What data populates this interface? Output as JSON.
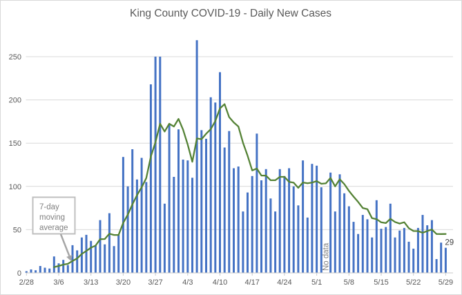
{
  "chart": {
    "title": "King County COVID-19 - Daily New Cases",
    "annotation": {
      "lines": [
        "7-day",
        "moving",
        "average"
      ]
    },
    "no_data_label": "No data",
    "last_value_label": "29",
    "colors": {
      "bar": "#4472C4",
      "line": "#548235",
      "grid": "#D9D9D9",
      "baseline": "#C9C9C9",
      "axis_text": "#595959",
      "title_text": "#595959",
      "annotation_text": "#808080",
      "annotation_border": "#BFBFBF",
      "arrow": "#A6A6A6",
      "data_label": "#404040",
      "chart_border": "#D9D9D9",
      "background": "#FFFFFF"
    }
  },
  "chart_data": {
    "type": "bar",
    "title": "King County COVID-19 - Daily New Cases",
    "xlabel": "",
    "ylabel": "",
    "x": [
      "2/28",
      "2/29",
      "3/1",
      "3/2",
      "3/3",
      "3/4",
      "3/5",
      "3/6",
      "3/7",
      "3/8",
      "3/9",
      "3/10",
      "3/11",
      "3/12",
      "3/13",
      "3/14",
      "3/15",
      "3/16",
      "3/17",
      "3/18",
      "3/19",
      "3/20",
      "3/21",
      "3/22",
      "3/23",
      "3/24",
      "3/25",
      "3/26",
      "3/27",
      "3/28",
      "3/29",
      "3/30",
      "3/31",
      "4/1",
      "4/2",
      "4/3",
      "4/4",
      "4/5",
      "4/6",
      "4/7",
      "4/8",
      "4/9",
      "4/10",
      "4/11",
      "4/12",
      "4/13",
      "4/14",
      "4/15",
      "4/16",
      "4/17",
      "4/18",
      "4/19",
      "4/20",
      "4/21",
      "4/22",
      "4/23",
      "4/24",
      "4/25",
      "4/26",
      "4/27",
      "4/28",
      "4/29",
      "4/30",
      "5/1",
      "5/2",
      "5/3",
      "5/4",
      "5/5",
      "5/6",
      "5/7",
      "5/8",
      "5/9",
      "5/10",
      "5/11",
      "5/12",
      "5/13",
      "5/14",
      "5/15",
      "5/16",
      "5/17",
      "5/18",
      "5/19",
      "5/20",
      "5/21",
      "5/22",
      "5/23",
      "5/24",
      "5/25",
      "5/26",
      "5/27",
      "5/28",
      "5/29"
    ],
    "series": [
      {
        "name": "Daily new cases",
        "type": "bar",
        "color": "#4472C4",
        "values": [
          2,
          4,
          3,
          8,
          6,
          5,
          19,
          11,
          15,
          9,
          32,
          26,
          41,
          44,
          37,
          32,
          61,
          33,
          69,
          31,
          44,
          134,
          100,
          143,
          108,
          133,
          105,
          218,
          250,
          250,
          80,
          171,
          111,
          166,
          131,
          130,
          110,
          269,
          165,
          155,
          203,
          197,
          232,
          145,
          164,
          121,
          123,
          71,
          93,
          112,
          161,
          107,
          120,
          86,
          71,
          120,
          112,
          121,
          100,
          78,
          130,
          64,
          126,
          124,
          99,
          null,
          116,
          71,
          114,
          92,
          77,
          59,
          45,
          67,
          62,
          41,
          84,
          51,
          53,
          80,
          41,
          49,
          52,
          36,
          28,
          52,
          67,
          55,
          61,
          16,
          35,
          29
        ]
      },
      {
        "name": "7-day moving average",
        "type": "line",
        "color": "#548235",
        "derived_from": "Daily new cases",
        "derivation": "trailing_7_day_mean_skipping_missing"
      }
    ],
    "x_tick_labels": [
      "2/28",
      "3/6",
      "3/13",
      "3/20",
      "3/27",
      "4/3",
      "4/10",
      "4/17",
      "4/24",
      "5/1",
      "5/8",
      "5/15",
      "5/22",
      "5/29"
    ],
    "y_ticks": [
      0,
      50,
      100,
      150,
      200,
      250
    ],
    "ylim": [
      0,
      270
    ],
    "grid": "horizontal-only",
    "legend": "none",
    "missing_data": {
      "date": "5/3",
      "label": "No data"
    },
    "annotations": [
      {
        "text": "7-day moving average",
        "target": "moving average line near 3/10"
      },
      {
        "text": "No data",
        "target": "5/3 bar gap, rotated 90deg"
      },
      {
        "text": "29",
        "target": "last bar (5/29) value label"
      }
    ]
  }
}
